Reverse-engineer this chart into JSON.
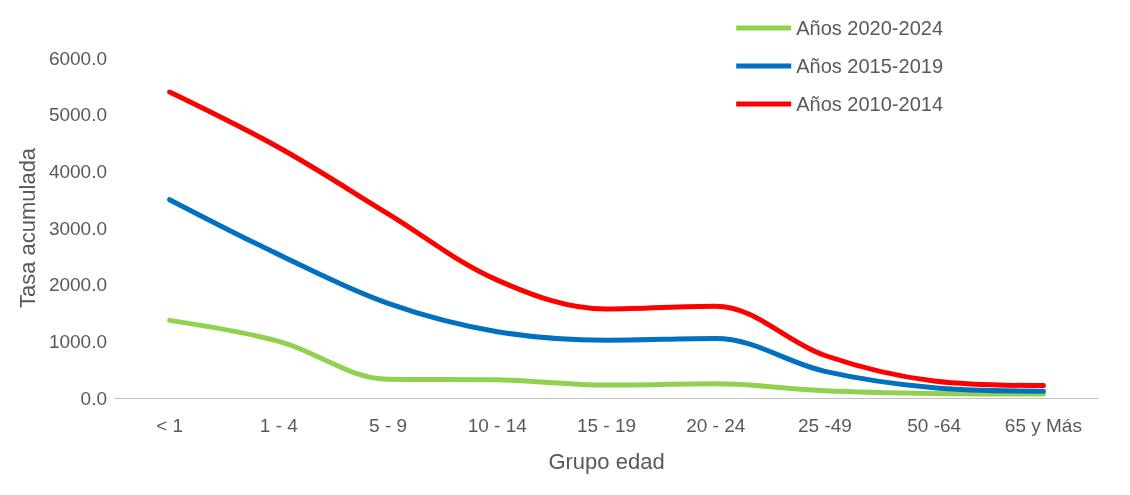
{
  "chart_data": {
    "type": "line",
    "xlabel": "Grupo edad",
    "ylabel": "Tasa acumulada",
    "categories": [
      "< 1",
      "1 - 4",
      "5 - 9",
      "10 - 14",
      "15 - 19",
      "20 - 24",
      "25 -49",
      "50 -64",
      "65 y Más"
    ],
    "series": [
      {
        "name": "Años 2020-2024",
        "color": "#92d050",
        "values": [
          1370,
          1000,
          330,
          320,
          230,
          250,
          130,
          80,
          70
        ]
      },
      {
        "name": "Años 2015-2019",
        "color": "#0070c0",
        "values": [
          3500,
          2530,
          1670,
          1170,
          1020,
          1050,
          470,
          180,
          120
        ]
      },
      {
        "name": "Años 2010-2014",
        "color": "#ff0000",
        "values": [
          5400,
          4420,
          3250,
          2080,
          1570,
          1620,
          750,
          300,
          220
        ]
      }
    ],
    "ylim": [
      0,
      6000
    ],
    "yticks": [
      {
        "value": 0,
        "label": "0.0"
      },
      {
        "value": 1000,
        "label": "1000.0"
      },
      {
        "value": 2000,
        "label": "2000.0"
      },
      {
        "value": 3000,
        "label": "3000.0"
      },
      {
        "value": 4000,
        "label": "4000.0"
      },
      {
        "value": 5000,
        "label": "5000.0"
      },
      {
        "value": 6000,
        "label": "6000.0"
      }
    ],
    "grid": false,
    "legend": "top right",
    "marker": "none",
    "line_style": "solid"
  }
}
